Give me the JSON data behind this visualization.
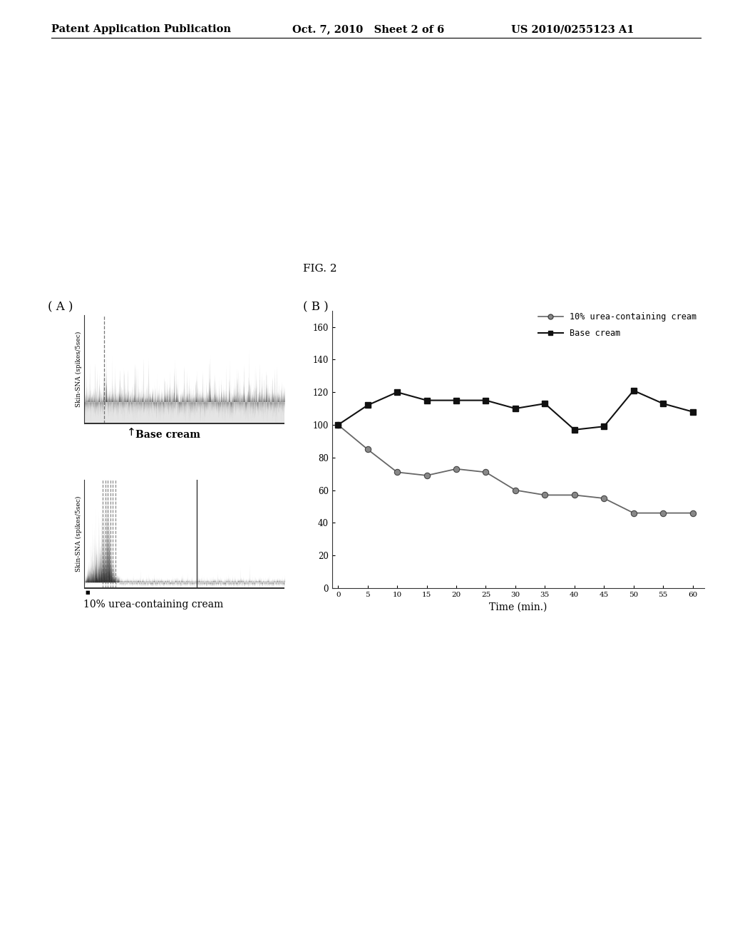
{
  "header_left": "Patent Application Publication",
  "header_mid": "Oct. 7, 2010   Sheet 2 of 6",
  "header_right": "US 2010/0255123 A1",
  "fig_label": "FIG. 2",
  "panel_A_label": "( A )",
  "panel_B_label": "( B )",
  "panel_A_top_label": "Base cream",
  "panel_A_bottom_label": "10% urea-containing cream",
  "panel_A_ylabel": "Skin-SNA (spikes/5sec)",
  "base_cream_x": [
    0,
    5,
    10,
    15,
    20,
    25,
    30,
    35,
    40,
    45,
    50,
    55,
    60
  ],
  "base_cream_y": [
    100,
    112,
    120,
    115,
    115,
    115,
    110,
    113,
    97,
    99,
    121,
    113,
    108
  ],
  "urea_cream_x": [
    0,
    5,
    10,
    15,
    20,
    25,
    30,
    35,
    40,
    45,
    50,
    55,
    60
  ],
  "urea_cream_y": [
    100,
    85,
    71,
    69,
    73,
    71,
    60,
    57,
    57,
    55,
    46,
    46,
    46
  ],
  "xlabel": "Time (min.)",
  "ylim": [
    0,
    170
  ],
  "yticks": [
    0,
    20,
    40,
    60,
    80,
    100,
    120,
    140,
    160
  ],
  "xticks": [
    0,
    5,
    10,
    15,
    20,
    25,
    30,
    35,
    40,
    45,
    50,
    55,
    60
  ],
  "xtick_labels": [
    "0",
    "5",
    "10",
    "15",
    "20",
    "25",
    "30",
    "35",
    "40",
    "45",
    "50",
    "55",
    "60"
  ],
  "legend_base": "Base cream",
  "legend_urea": "10% urea-containing cream",
  "bg_color": "#ffffff",
  "line_color_base": "#111111",
  "line_color_urea": "#555555"
}
